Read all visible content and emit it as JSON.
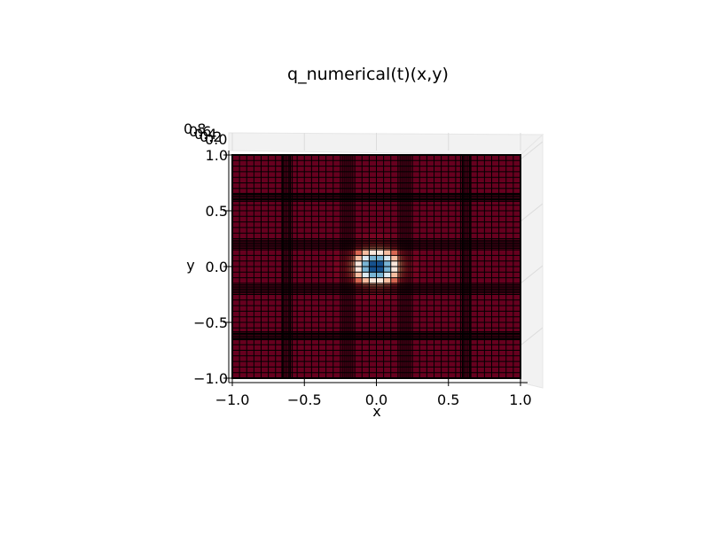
{
  "chart_data": {
    "type": "heatmap",
    "title": "q_numerical(t)(x,y)",
    "xlabel": "x",
    "ylabel": "y",
    "zlabel": "",
    "xlim": [
      -1.0,
      1.0
    ],
    "ylim": [
      -1.0,
      1.0
    ],
    "x_ticks": [
      "−1.0",
      "−0.5",
      "0.0",
      "0.5",
      "1.0"
    ],
    "y_ticks": [
      "−1.0",
      "−0.5",
      "0.0",
      "0.5",
      "1.0"
    ],
    "z_ticks": [
      "0.8",
      "0.6",
      "0.4",
      "0.2",
      "0.0"
    ],
    "colormap": "RdBu",
    "surface": {
      "form": "gaussian_dip",
      "center": [
        0.0,
        0.0
      ],
      "baseline": 1.0,
      "min_value": 0.2,
      "width": 0.1
    },
    "grid": true,
    "view": "top-down"
  }
}
